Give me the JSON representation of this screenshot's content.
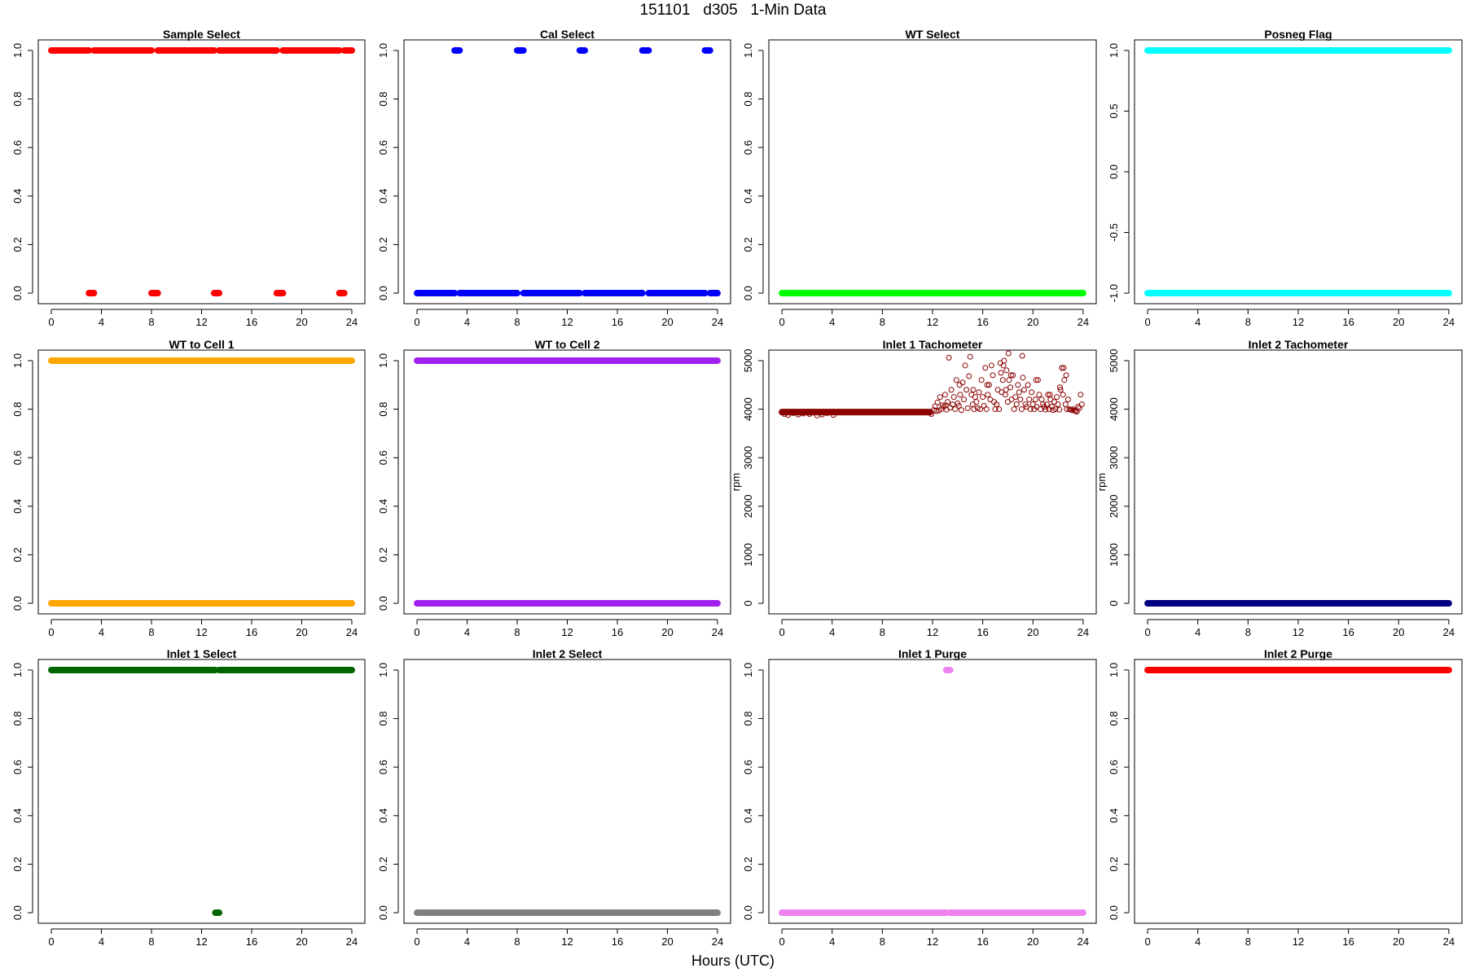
{
  "page": {
    "title": "151101   d305   1-Min Data",
    "xlabel": "Hours (UTC)"
  },
  "chart_data": [
    {
      "id": "sample-select",
      "type": "scatter",
      "title": "Sample Select",
      "ylabel": "",
      "color": "#ff0000",
      "xlim": [
        0,
        24
      ],
      "ylim": [
        0,
        1
      ],
      "xticks": [
        "0",
        "4",
        "8",
        "12",
        "16",
        "20",
        "24"
      ],
      "yticks": [
        "0.0",
        "0.2",
        "0.4",
        "0.6",
        "0.8",
        "1.0"
      ],
      "series": [
        {
          "type": "hline",
          "y": 1.0,
          "ranges": [
            [
              0,
              3.0
            ],
            [
              3.4,
              8.0
            ],
            [
              8.5,
              13.0
            ],
            [
              13.4,
              18.0
            ],
            [
              18.5,
              23.0
            ],
            [
              23.4,
              24
            ]
          ]
        },
        {
          "type": "hline",
          "y": 0.0,
          "ranges": [
            [
              3.0,
              3.4
            ],
            [
              8.0,
              8.5
            ],
            [
              13.0,
              13.4
            ],
            [
              18.0,
              18.5
            ],
            [
              23.0,
              23.4
            ]
          ]
        }
      ]
    },
    {
      "id": "cal-select",
      "type": "scatter",
      "title": "Cal Select",
      "ylabel": "",
      "color": "#0000ff",
      "xlim": [
        0,
        24
      ],
      "ylim": [
        0,
        1
      ],
      "xticks": [
        "0",
        "4",
        "8",
        "12",
        "16",
        "20",
        "24"
      ],
      "yticks": [
        "0.0",
        "0.2",
        "0.4",
        "0.6",
        "0.8",
        "1.0"
      ],
      "series": [
        {
          "type": "hline",
          "y": 1.0,
          "ranges": [
            [
              3.0,
              3.4
            ],
            [
              8.0,
              8.5
            ],
            [
              13.0,
              13.4
            ],
            [
              18.0,
              18.5
            ],
            [
              23.0,
              23.4
            ]
          ]
        },
        {
          "type": "hline",
          "y": 0.0,
          "ranges": [
            [
              0,
              3.0
            ],
            [
              3.4,
              8.0
            ],
            [
              8.5,
              13.0
            ],
            [
              13.4,
              18.0
            ],
            [
              18.5,
              23.0
            ],
            [
              23.4,
              24
            ]
          ]
        }
      ]
    },
    {
      "id": "wt-select",
      "type": "scatter",
      "title": "WT Select",
      "ylabel": "",
      "color": "#00ff00",
      "xlim": [
        0,
        24
      ],
      "ylim": [
        0,
        1
      ],
      "xticks": [
        "0",
        "4",
        "8",
        "12",
        "16",
        "20",
        "24"
      ],
      "yticks": [
        "0.0",
        "0.2",
        "0.4",
        "0.6",
        "0.8",
        "1.0"
      ],
      "series": [
        {
          "type": "hline",
          "y": 0.0,
          "ranges": [
            [
              0,
              24
            ]
          ]
        }
      ]
    },
    {
      "id": "posneg-flag",
      "type": "scatter",
      "title": "Posneg Flag",
      "ylabel": "",
      "color": "#00ffff",
      "xlim": [
        0,
        24
      ],
      "ylim": [
        -1,
        1
      ],
      "xticks": [
        "0",
        "4",
        "8",
        "12",
        "16",
        "20",
        "24"
      ],
      "yticks": [
        "-1.0",
        "-0.5",
        "0.0",
        "0.5",
        "1.0"
      ],
      "series": [
        {
          "type": "hline",
          "y": 1.0,
          "ranges": [
            [
              0,
              24
            ]
          ]
        },
        {
          "type": "hline",
          "y": -1.0,
          "ranges": [
            [
              0,
              24
            ]
          ]
        }
      ]
    },
    {
      "id": "wt-to-cell-1",
      "type": "scatter",
      "title": "WT to Cell 1",
      "ylabel": "",
      "color": "#ffa500",
      "xlim": [
        0,
        24
      ],
      "ylim": [
        0,
        1
      ],
      "xticks": [
        "0",
        "4",
        "8",
        "12",
        "16",
        "20",
        "24"
      ],
      "yticks": [
        "0.0",
        "0.2",
        "0.4",
        "0.6",
        "0.8",
        "1.0"
      ],
      "series": [
        {
          "type": "hline",
          "y": 1.0,
          "ranges": [
            [
              0,
              24
            ]
          ]
        },
        {
          "type": "hline",
          "y": 0.0,
          "ranges": [
            [
              0,
              24
            ]
          ]
        }
      ]
    },
    {
      "id": "wt-to-cell-2",
      "type": "scatter",
      "title": "WT to Cell 2",
      "ylabel": "",
      "color": "#a020f0",
      "xlim": [
        0,
        24
      ],
      "ylim": [
        0,
        1
      ],
      "xticks": [
        "0",
        "4",
        "8",
        "12",
        "16",
        "20",
        "24"
      ],
      "yticks": [
        "0.0",
        "0.2",
        "0.4",
        "0.6",
        "0.8",
        "1.0"
      ],
      "series": [
        {
          "type": "hline",
          "y": 1.0,
          "ranges": [
            [
              0,
              24
            ]
          ]
        },
        {
          "type": "hline",
          "y": 0.0,
          "ranges": [
            [
              0,
              24
            ]
          ]
        }
      ]
    },
    {
      "id": "inlet-1-tachometer",
      "type": "scatter",
      "title": "Inlet 1 Tachometer",
      "ylabel": "rpm",
      "color": "#8b0000",
      "xlim": [
        0,
        24
      ],
      "ylim": [
        0,
        5000
      ],
      "xticks": [
        "0",
        "4",
        "8",
        "12",
        "16",
        "20",
        "24"
      ],
      "yticks": [
        "0",
        "1000",
        "2000",
        "3000",
        "4000",
        "5000"
      ],
      "series": [
        {
          "type": "hline",
          "y": 3940,
          "ranges": [
            [
              0,
              11.8
            ]
          ]
        },
        {
          "type": "points",
          "x": [
            0.2,
            0.5,
            0.9,
            1.3,
            1.7,
            2.2,
            2.8,
            3.2,
            3.6,
            4.1,
            11.9,
            12.1,
            12.2,
            12.4,
            12.5,
            12.6,
            12.7,
            12.8,
            12.9,
            13.0,
            13.1,
            13.2,
            13.3,
            13.4,
            13.5,
            13.6,
            13.7,
            13.8,
            13.9,
            14.0,
            14.1,
            14.2,
            14.3,
            14.4,
            14.5,
            14.6,
            14.7,
            14.8,
            14.9,
            15.0,
            15.1,
            15.2,
            15.3,
            15.4,
            15.5,
            15.6,
            15.7,
            15.8,
            15.9,
            16.0,
            16.1,
            16.2,
            16.3,
            16.4,
            16.5,
            16.6,
            16.7,
            16.8,
            16.9,
            17.0,
            17.1,
            17.2,
            17.3,
            17.4,
            17.5,
            17.6,
            17.7,
            17.8,
            17.9,
            18.0,
            18.1,
            18.2,
            18.3,
            18.4,
            18.5,
            18.6,
            18.7,
            18.8,
            18.9,
            19.0,
            19.1,
            19.2,
            19.3,
            19.4,
            19.5,
            19.6,
            19.7,
            19.8,
            19.9,
            20.0,
            20.1,
            20.2,
            20.3,
            20.4,
            20.5,
            20.6,
            20.7,
            20.8,
            20.9,
            21.0,
            21.1,
            21.2,
            21.3,
            21.4,
            21.5,
            21.6,
            21.7,
            21.8,
            21.9,
            22.0,
            22.1,
            22.2,
            22.3,
            22.4,
            22.5,
            22.6,
            22.7,
            22.8,
            22.9,
            23.0,
            23.1,
            23.2,
            23.3,
            23.4,
            23.5,
            23.6,
            23.7,
            23.8,
            23.9,
            12.3,
            13.05,
            14.15,
            15.25,
            16.35,
            17.45,
            17.65,
            17.85,
            18.05,
            18.25,
            19.15,
            20.25,
            21.35,
            22.15,
            22.45,
            22.65
          ],
          "y": [
            3900,
            3880,
            3920,
            3890,
            3910,
            3900,
            3870,
            3890,
            3920,
            3880,
            3900,
            3980,
            4060,
            4140,
            3970,
            4250,
            4000,
            4080,
            4050,
            4300,
            3990,
            4150,
            5060,
            4030,
            4400,
            4100,
            4250,
            4000,
            4600,
            4120,
            4070,
            4300,
            3980,
            4550,
            4200,
            4900,
            4400,
            4020,
            4680,
            5080,
            4300,
            4100,
            4000,
            4250,
            4150,
            4020,
            4350,
            4000,
            4600,
            4250,
            4070,
            4850,
            4000,
            4300,
            4500,
            4200,
            4900,
            4700,
            4150,
            4000,
            4100,
            4400,
            4000,
            4950,
            4350,
            4600,
            5000,
            4300,
            4800,
            4150,
            4600,
            4450,
            4200,
            4700,
            4000,
            4250,
            4100,
            4500,
            4350,
            4200,
            4000,
            4650,
            4400,
            4100,
            4050,
            4500,
            4200,
            4000,
            4350,
            4100,
            4000,
            4200,
            4050,
            4600,
            4300,
            4000,
            4200,
            4100,
            4050,
            3990,
            4100,
            4300,
            4000,
            4200,
            4050,
            3980,
            4150,
            4000,
            4250,
            4100,
            3990,
            4400,
            4850,
            4300,
            4600,
            4100,
            4000,
            4200,
            4000,
            3990,
            3980,
            4000,
            3970,
            3960,
            3950,
            4050,
            4020,
            4300,
            4100,
            3960,
            4080,
            4500,
            4400,
            4500,
            4750,
            4900,
            4400,
            5150,
            4700,
            5100,
            4600,
            4300,
            4450,
            4850,
            4700
          ],
          "color": "#8b0000",
          "marker": "open-circle"
        }
      ]
    },
    {
      "id": "inlet-2-tachometer",
      "type": "scatter",
      "title": "Inlet 2 Tachometer",
      "ylabel": "rpm",
      "color": "#000080",
      "xlim": [
        0,
        24
      ],
      "ylim": [
        0,
        5000
      ],
      "xticks": [
        "0",
        "4",
        "8",
        "12",
        "16",
        "20",
        "24"
      ],
      "yticks": [
        "0",
        "1000",
        "2000",
        "3000",
        "4000",
        "5000"
      ],
      "series": [
        {
          "type": "hline",
          "y": 0,
          "ranges": [
            [
              0,
              24
            ]
          ]
        }
      ]
    },
    {
      "id": "inlet-1-select",
      "type": "scatter",
      "title": "Inlet 1 Select",
      "ylabel": "",
      "color": "#006400",
      "xlim": [
        0,
        24
      ],
      "ylim": [
        0,
        1
      ],
      "xticks": [
        "0",
        "4",
        "8",
        "12",
        "16",
        "20",
        "24"
      ],
      "yticks": [
        "0.0",
        "0.2",
        "0.4",
        "0.6",
        "0.8",
        "1.0"
      ],
      "series": [
        {
          "type": "hline",
          "y": 1.0,
          "ranges": [
            [
              0,
              13.1
            ],
            [
              13.4,
              24
            ]
          ]
        },
        {
          "type": "hline",
          "y": 0.0,
          "ranges": [
            [
              13.1,
              13.4
            ]
          ]
        }
      ]
    },
    {
      "id": "inlet-2-select",
      "type": "scatter",
      "title": "Inlet 2 Select",
      "ylabel": "",
      "color": "#808080",
      "xlim": [
        0,
        24
      ],
      "ylim": [
        0,
        1
      ],
      "xticks": [
        "0",
        "4",
        "8",
        "12",
        "16",
        "20",
        "24"
      ],
      "yticks": [
        "0.0",
        "0.2",
        "0.4",
        "0.6",
        "0.8",
        "1.0"
      ],
      "series": [
        {
          "type": "hline",
          "y": 0.0,
          "ranges": [
            [
              0,
              24
            ]
          ]
        }
      ]
    },
    {
      "id": "inlet-1-purge",
      "type": "scatter",
      "title": "Inlet 1 Purge",
      "ylabel": "",
      "color": "#ee82ee",
      "xlim": [
        0,
        24
      ],
      "ylim": [
        0,
        1
      ],
      "xticks": [
        "0",
        "4",
        "8",
        "12",
        "16",
        "20",
        "24"
      ],
      "yticks": [
        "0.0",
        "0.2",
        "0.4",
        "0.6",
        "0.8",
        "1.0"
      ],
      "series": [
        {
          "type": "hline",
          "y": 1.0,
          "ranges": [
            [
              13.1,
              13.4
            ]
          ]
        },
        {
          "type": "hline",
          "y": 0.0,
          "ranges": [
            [
              0,
              13.1
            ],
            [
              13.4,
              24
            ]
          ]
        }
      ]
    },
    {
      "id": "inlet-2-purge",
      "type": "scatter",
      "title": "Inlet 2 Purge",
      "ylabel": "",
      "color": "#ff0000",
      "xlim": [
        0,
        24
      ],
      "ylim": [
        0,
        1
      ],
      "xticks": [
        "0",
        "4",
        "8",
        "12",
        "16",
        "20",
        "24"
      ],
      "yticks": [
        "0.0",
        "0.2",
        "0.4",
        "0.6",
        "0.8",
        "1.0"
      ],
      "series": [
        {
          "type": "hline",
          "y": 1.0,
          "ranges": [
            [
              0,
              24
            ]
          ]
        }
      ]
    }
  ]
}
